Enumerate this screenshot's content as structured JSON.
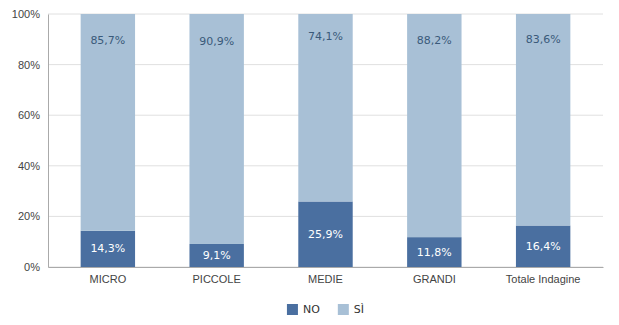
{
  "chart_data": {
    "type": "bar",
    "stacked": true,
    "categories": [
      "MICRO",
      "PICCOLE",
      "MEDIE",
      "GRANDI",
      "Totale Indagine"
    ],
    "series": [
      {
        "name": "NO",
        "color": "#4a6fa0",
        "values": [
          14.3,
          9.1,
          25.9,
          11.8,
          16.4
        ],
        "value_labels": [
          "14,3%",
          "9,1%",
          "25,9%",
          "11,8%",
          "16,4%"
        ]
      },
      {
        "name": "SÌ",
        "color": "#a8c0d6",
        "values": [
          85.7,
          90.9,
          74.1,
          88.2,
          83.6
        ],
        "value_labels": [
          "85,7%",
          "90,9%",
          "74,1%",
          "88,2%",
          "83,6%"
        ]
      }
    ],
    "ylim": [
      0,
      100
    ],
    "yticks": [
      {
        "value": 0,
        "label": "0%"
      },
      {
        "value": 20,
        "label": "20%"
      },
      {
        "value": 40,
        "label": "40%"
      },
      {
        "value": 60,
        "label": "60%"
      },
      {
        "value": 80,
        "label": "80%"
      },
      {
        "value": 100,
        "label": "100%"
      }
    ],
    "grid": true,
    "data_labels": true,
    "legend": "bottom"
  }
}
